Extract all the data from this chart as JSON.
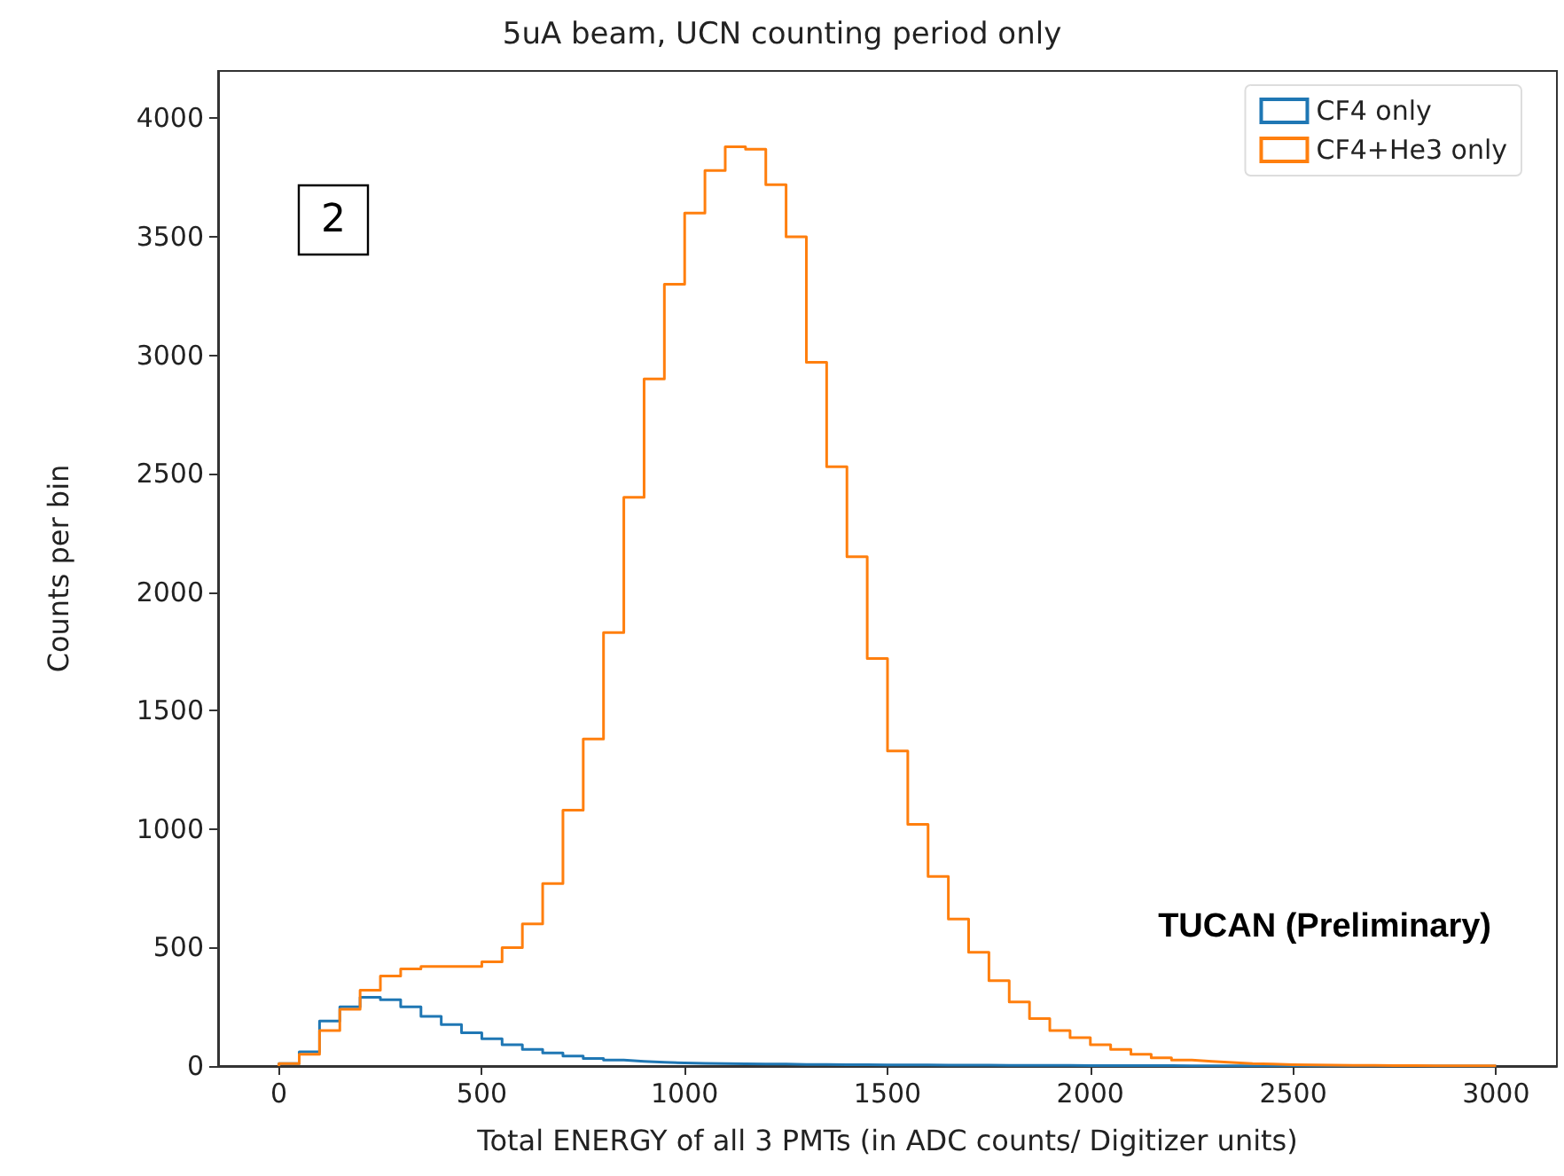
{
  "chart_data": {
    "type": "histogram",
    "title": "5uA beam, UCN counting period only",
    "xlabel": "Total ENERGY of all 3 PMTs (in ADC counts/ Digitizer units)",
    "ylabel": "Counts per bin",
    "annotations": [
      "2",
      "TUCAN (Preliminary)"
    ],
    "bins": [
      0,
      50,
      100,
      150,
      200,
      250,
      300,
      350,
      400,
      450,
      500,
      550,
      600,
      650,
      700,
      750,
      800,
      850,
      900,
      950,
      1000,
      1050,
      1100,
      1150,
      1200,
      1250,
      1300,
      1350,
      1400,
      1450,
      1500,
      1550,
      1600,
      1650,
      1700,
      1750,
      1800,
      1850,
      1900,
      1950,
      2000,
      2050,
      2100,
      2150,
      2200,
      2250,
      2300,
      2350,
      2400,
      2450,
      2500,
      2550,
      2600,
      2650,
      2700,
      2750,
      2800,
      2850,
      2900,
      2950,
      3000
    ],
    "series": [
      {
        "name": "CF4 only",
        "color": "#1f77b4",
        "values": [
          10,
          60,
          190,
          250,
          290,
          280,
          250,
          210,
          175,
          140,
          115,
          90,
          70,
          55,
          42,
          32,
          25,
          20,
          16,
          13,
          11,
          10,
          9,
          8,
          8,
          7,
          7,
          6,
          6,
          5,
          5,
          5,
          4,
          4,
          4,
          3,
          3,
          3,
          3,
          2,
          2,
          2,
          2,
          2,
          1,
          1,
          1,
          1,
          1,
          1,
          0,
          0,
          0,
          0,
          0,
          0,
          0,
          0,
          0,
          0
        ]
      },
      {
        "name": "CF4+He3 only",
        "color": "#ff7f0e",
        "values": [
          10,
          50,
          150,
          240,
          320,
          380,
          410,
          420,
          420,
          420,
          440,
          500,
          600,
          770,
          1080,
          1380,
          1830,
          2400,
          2900,
          3300,
          3600,
          3780,
          3880,
          3870,
          3720,
          3500,
          2970,
          2530,
          2150,
          1720,
          1330,
          1020,
          800,
          620,
          480,
          360,
          270,
          200,
          150,
          120,
          90,
          70,
          50,
          35,
          25,
          20,
          15,
          10,
          8,
          6,
          5,
          4,
          3,
          3,
          2,
          2,
          1,
          1,
          1,
          1
        ]
      }
    ],
    "xlim": [
      -150,
      3150
    ],
    "ylim": [
      0,
      4200
    ],
    "xticks": [
      0,
      500,
      1000,
      1500,
      2000,
      2500,
      3000
    ],
    "yticks": [
      0,
      500,
      1000,
      1500,
      2000,
      2500,
      3000,
      3500,
      4000
    ],
    "grid": false,
    "legend": "top right"
  }
}
